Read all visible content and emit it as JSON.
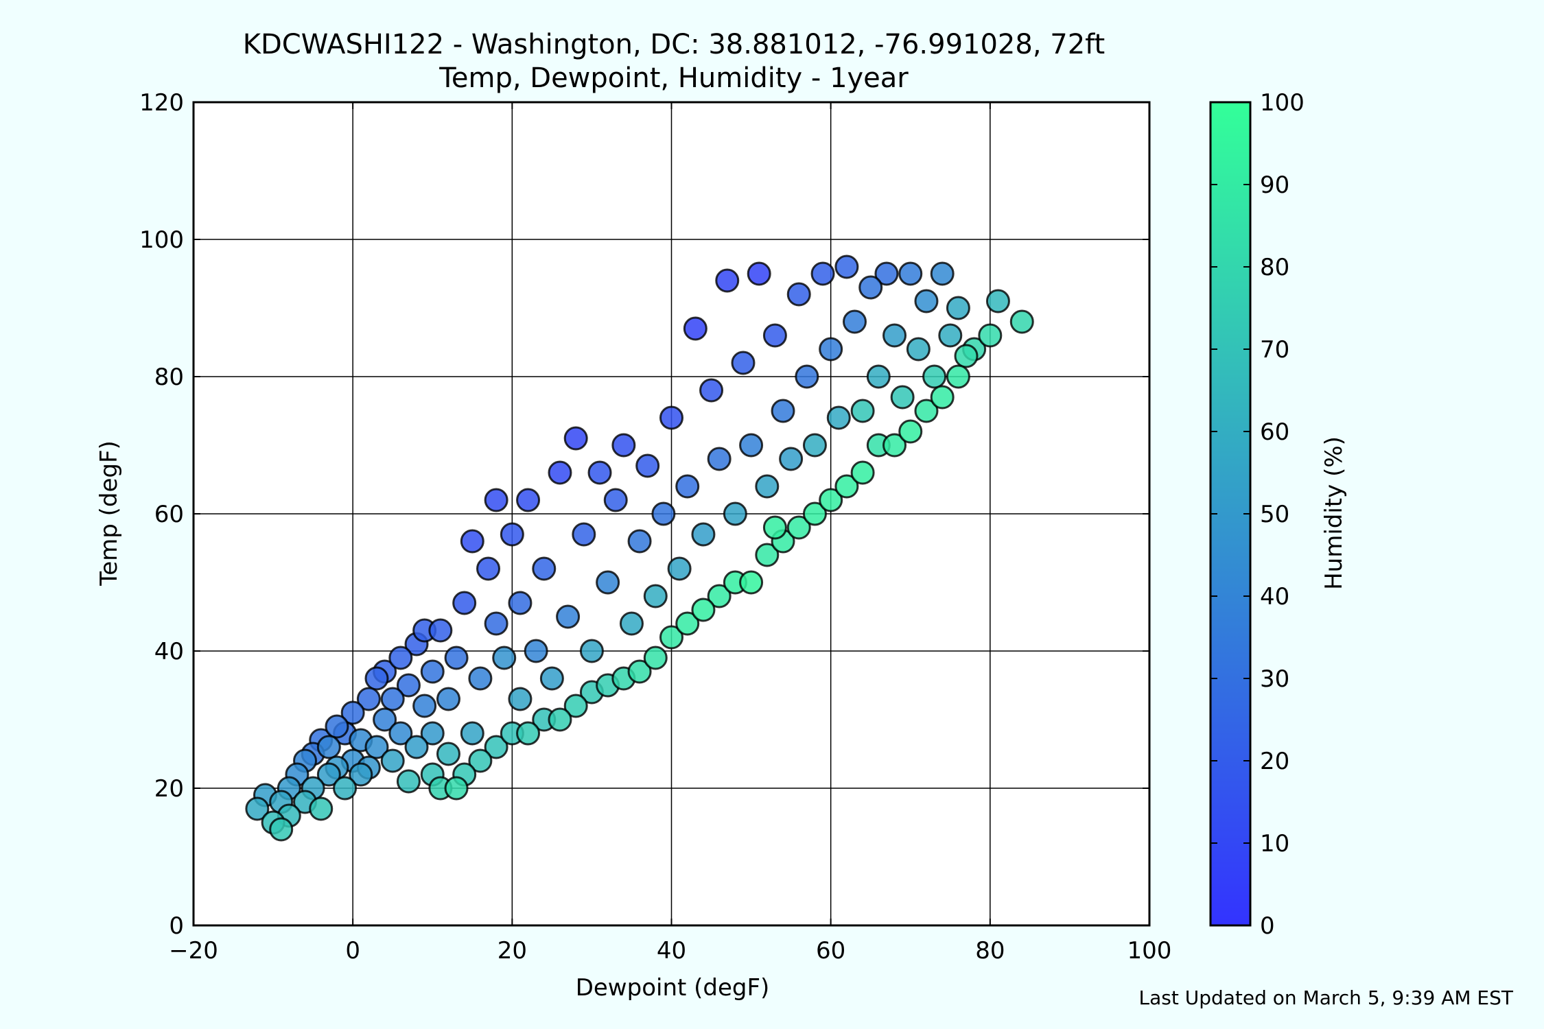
{
  "page": {
    "background": "#f0ffff",
    "footer": "Last Updated on March 5, 9:39 AM EST"
  },
  "chart_data": {
    "type": "scatter",
    "title_line1": "KDCWASHI122 - Washington, DC: 38.881012, -76.991028, 72ft",
    "title_line2": "Temp, Dewpoint, Humidity - 1year",
    "xlabel": "Dewpoint (degF)",
    "ylabel": "Temp (degF)",
    "colorbar_label": "Humidity (%)",
    "xlim": [
      -20,
      100
    ],
    "ylim": [
      0,
      120
    ],
    "xticks": [
      -20,
      0,
      20,
      40,
      60,
      80,
      100
    ],
    "xtick_labels": [
      "−20",
      "0",
      "20",
      "40",
      "60",
      "80",
      "100"
    ],
    "yticks": [
      0,
      20,
      40,
      60,
      80,
      100,
      120
    ],
    "ytick_labels": [
      "0",
      "20",
      "40",
      "60",
      "80",
      "100",
      "120"
    ],
    "colorbar_ticks": [
      0,
      10,
      20,
      30,
      40,
      50,
      60,
      70,
      80,
      90,
      100
    ],
    "colorbar_tick_labels": [
      "0",
      "10",
      "20",
      "30",
      "40",
      "50",
      "60",
      "70",
      "80",
      "90",
      "100"
    ],
    "color_range": [
      0,
      100
    ],
    "colormap": [
      "#3333ff",
      "#33ff99"
    ],
    "grid": true,
    "marker_edge_color": "#000000",
    "points": [
      {
        "x": -12,
        "y": 17,
        "h": 58
      },
      {
        "x": -11,
        "y": 19,
        "h": 52
      },
      {
        "x": -10,
        "y": 15,
        "h": 68
      },
      {
        "x": -9,
        "y": 14,
        "h": 73
      },
      {
        "x": -9,
        "y": 18,
        "h": 56
      },
      {
        "x": -8,
        "y": 16,
        "h": 66
      },
      {
        "x": -8,
        "y": 20,
        "h": 50
      },
      {
        "x": -7,
        "y": 22,
        "h": 44
      },
      {
        "x": -6,
        "y": 18,
        "h": 62
      },
      {
        "x": -6,
        "y": 24,
        "h": 40
      },
      {
        "x": -5,
        "y": 25,
        "h": 33
      },
      {
        "x": -5,
        "y": 20,
        "h": 55
      },
      {
        "x": -4,
        "y": 27,
        "h": 31
      },
      {
        "x": -4,
        "y": 17,
        "h": 72
      },
      {
        "x": -3,
        "y": 22,
        "h": 52
      },
      {
        "x": -3,
        "y": 26,
        "h": 40
      },
      {
        "x": -2,
        "y": 29,
        "h": 32
      },
      {
        "x": -2,
        "y": 23,
        "h": 50
      },
      {
        "x": -1,
        "y": 28,
        "h": 30
      },
      {
        "x": -1,
        "y": 20,
        "h": 62
      },
      {
        "x": 0,
        "y": 31,
        "h": 29
      },
      {
        "x": 0,
        "y": 24,
        "h": 45
      },
      {
        "x": 1,
        "y": 22,
        "h": 52
      },
      {
        "x": 1,
        "y": 27,
        "h": 43
      },
      {
        "x": 2,
        "y": 33,
        "h": 28
      },
      {
        "x": 2,
        "y": 23,
        "h": 48
      },
      {
        "x": 3,
        "y": 36,
        "h": 25
      },
      {
        "x": 3,
        "y": 26,
        "h": 45
      },
      {
        "x": 4,
        "y": 30,
        "h": 38
      },
      {
        "x": 4,
        "y": 37,
        "h": 24
      },
      {
        "x": 5,
        "y": 24,
        "h": 55
      },
      {
        "x": 5,
        "y": 33,
        "h": 32
      },
      {
        "x": 6,
        "y": 39,
        "h": 24
      },
      {
        "x": 6,
        "y": 28,
        "h": 43
      },
      {
        "x": 7,
        "y": 21,
        "h": 68
      },
      {
        "x": 7,
        "y": 35,
        "h": 30
      },
      {
        "x": 8,
        "y": 41,
        "h": 22
      },
      {
        "x": 8,
        "y": 26,
        "h": 52
      },
      {
        "x": 9,
        "y": 32,
        "h": 38
      },
      {
        "x": 9,
        "y": 43,
        "h": 22
      },
      {
        "x": 10,
        "y": 22,
        "h": 70
      },
      {
        "x": 10,
        "y": 28,
        "h": 50
      },
      {
        "x": 10,
        "y": 37,
        "h": 32
      },
      {
        "x": 11,
        "y": 20,
        "h": 78
      },
      {
        "x": 11,
        "y": 43,
        "h": 22
      },
      {
        "x": 12,
        "y": 25,
        "h": 64
      },
      {
        "x": 12,
        "y": 33,
        "h": 40
      },
      {
        "x": 13,
        "y": 20,
        "h": 82
      },
      {
        "x": 13,
        "y": 39,
        "h": 31
      },
      {
        "x": 14,
        "y": 22,
        "h": 73
      },
      {
        "x": 14,
        "y": 47,
        "h": 20
      },
      {
        "x": 15,
        "y": 28,
        "h": 55
      },
      {
        "x": 15,
        "y": 56,
        "h": 14
      },
      {
        "x": 16,
        "y": 24,
        "h": 72
      },
      {
        "x": 16,
        "y": 36,
        "h": 38
      },
      {
        "x": 17,
        "y": 52,
        "h": 19
      },
      {
        "x": 18,
        "y": 26,
        "h": 70
      },
      {
        "x": 18,
        "y": 44,
        "h": 28
      },
      {
        "x": 18,
        "y": 62,
        "h": 13
      },
      {
        "x": 19,
        "y": 39,
        "h": 47
      },
      {
        "x": 20,
        "y": 28,
        "h": 70
      },
      {
        "x": 20,
        "y": 57,
        "h": 18
      },
      {
        "x": 21,
        "y": 33,
        "h": 55
      },
      {
        "x": 21,
        "y": 47,
        "h": 28
      },
      {
        "x": 22,
        "y": 28,
        "h": 74
      },
      {
        "x": 22,
        "y": 62,
        "h": 14
      },
      {
        "x": 23,
        "y": 40,
        "h": 40
      },
      {
        "x": 24,
        "y": 30,
        "h": 70
      },
      {
        "x": 24,
        "y": 52,
        "h": 25
      },
      {
        "x": 25,
        "y": 36,
        "h": 52
      },
      {
        "x": 26,
        "y": 30,
        "h": 76
      },
      {
        "x": 26,
        "y": 66,
        "h": 12
      },
      {
        "x": 27,
        "y": 45,
        "h": 38
      },
      {
        "x": 28,
        "y": 32,
        "h": 75
      },
      {
        "x": 28,
        "y": 71,
        "h": 10
      },
      {
        "x": 29,
        "y": 57,
        "h": 24
      },
      {
        "x": 30,
        "y": 34,
        "h": 73
      },
      {
        "x": 30,
        "y": 40,
        "h": 56
      },
      {
        "x": 31,
        "y": 66,
        "h": 18
      },
      {
        "x": 32,
        "y": 35,
        "h": 76
      },
      {
        "x": 32,
        "y": 50,
        "h": 40
      },
      {
        "x": 33,
        "y": 62,
        "h": 22
      },
      {
        "x": 34,
        "y": 36,
        "h": 80
      },
      {
        "x": 34,
        "y": 70,
        "h": 15
      },
      {
        "x": 35,
        "y": 44,
        "h": 58
      },
      {
        "x": 36,
        "y": 37,
        "h": 84
      },
      {
        "x": 36,
        "y": 56,
        "h": 34
      },
      {
        "x": 37,
        "y": 67,
        "h": 20
      },
      {
        "x": 38,
        "y": 39,
        "h": 86
      },
      {
        "x": 38,
        "y": 48,
        "h": 60
      },
      {
        "x": 39,
        "y": 60,
        "h": 32
      },
      {
        "x": 40,
        "y": 42,
        "h": 88
      },
      {
        "x": 40,
        "y": 74,
        "h": 15
      },
      {
        "x": 41,
        "y": 52,
        "h": 55
      },
      {
        "x": 42,
        "y": 44,
        "h": 90
      },
      {
        "x": 42,
        "y": 64,
        "h": 30
      },
      {
        "x": 43,
        "y": 87,
        "h": 8
      },
      {
        "x": 44,
        "y": 46,
        "h": 92
      },
      {
        "x": 44,
        "y": 57,
        "h": 52
      },
      {
        "x": 45,
        "y": 78,
        "h": 18
      },
      {
        "x": 46,
        "y": 48,
        "h": 90
      },
      {
        "x": 46,
        "y": 68,
        "h": 33
      },
      {
        "x": 47,
        "y": 94,
        "h": 10
      },
      {
        "x": 48,
        "y": 50,
        "h": 92
      },
      {
        "x": 48,
        "y": 60,
        "h": 55
      },
      {
        "x": 49,
        "y": 82,
        "h": 22
      },
      {
        "x": 50,
        "y": 50,
        "h": 95
      },
      {
        "x": 50,
        "y": 70,
        "h": 38
      },
      {
        "x": 51,
        "y": 95,
        "h": 8
      },
      {
        "x": 52,
        "y": 54,
        "h": 88
      },
      {
        "x": 52,
        "y": 64,
        "h": 55
      },
      {
        "x": 53,
        "y": 58,
        "h": 92
      },
      {
        "x": 53,
        "y": 86,
        "h": 20
      },
      {
        "x": 54,
        "y": 56,
        "h": 90
      },
      {
        "x": 54,
        "y": 75,
        "h": 35
      },
      {
        "x": 55,
        "y": 68,
        "h": 52
      },
      {
        "x": 56,
        "y": 58,
        "h": 90
      },
      {
        "x": 56,
        "y": 92,
        "h": 22
      },
      {
        "x": 57,
        "y": 80,
        "h": 33
      },
      {
        "x": 58,
        "y": 60,
        "h": 92
      },
      {
        "x": 58,
        "y": 70,
        "h": 60
      },
      {
        "x": 59,
        "y": 95,
        "h": 22
      },
      {
        "x": 60,
        "y": 62,
        "h": 92
      },
      {
        "x": 60,
        "y": 84,
        "h": 37
      },
      {
        "x": 61,
        "y": 74,
        "h": 58
      },
      {
        "x": 62,
        "y": 64,
        "h": 92
      },
      {
        "x": 62,
        "y": 96,
        "h": 25
      },
      {
        "x": 63,
        "y": 88,
        "h": 37
      },
      {
        "x": 64,
        "y": 66,
        "h": 92
      },
      {
        "x": 64,
        "y": 75,
        "h": 72
      },
      {
        "x": 65,
        "y": 93,
        "h": 33
      },
      {
        "x": 66,
        "y": 70,
        "h": 85
      },
      {
        "x": 66,
        "y": 80,
        "h": 60
      },
      {
        "x": 67,
        "y": 95,
        "h": 30
      },
      {
        "x": 68,
        "y": 70,
        "h": 90
      },
      {
        "x": 68,
        "y": 86,
        "h": 52
      },
      {
        "x": 69,
        "y": 77,
        "h": 72
      },
      {
        "x": 70,
        "y": 72,
        "h": 92
      },
      {
        "x": 70,
        "y": 95,
        "h": 36
      },
      {
        "x": 71,
        "y": 84,
        "h": 60
      },
      {
        "x": 72,
        "y": 75,
        "h": 88
      },
      {
        "x": 72,
        "y": 91,
        "h": 45
      },
      {
        "x": 73,
        "y": 80,
        "h": 75
      },
      {
        "x": 74,
        "y": 77,
        "h": 90
      },
      {
        "x": 74,
        "y": 95,
        "h": 42
      },
      {
        "x": 75,
        "y": 86,
        "h": 60
      },
      {
        "x": 76,
        "y": 80,
        "h": 88
      },
      {
        "x": 76,
        "y": 90,
        "h": 58
      },
      {
        "x": 77,
        "y": 83,
        "h": 82
      },
      {
        "x": 78,
        "y": 84,
        "h": 80
      },
      {
        "x": 80,
        "y": 86,
        "h": 82
      },
      {
        "x": 81,
        "y": 91,
        "h": 65
      },
      {
        "x": 84,
        "y": 88,
        "h": 80
      }
    ]
  }
}
